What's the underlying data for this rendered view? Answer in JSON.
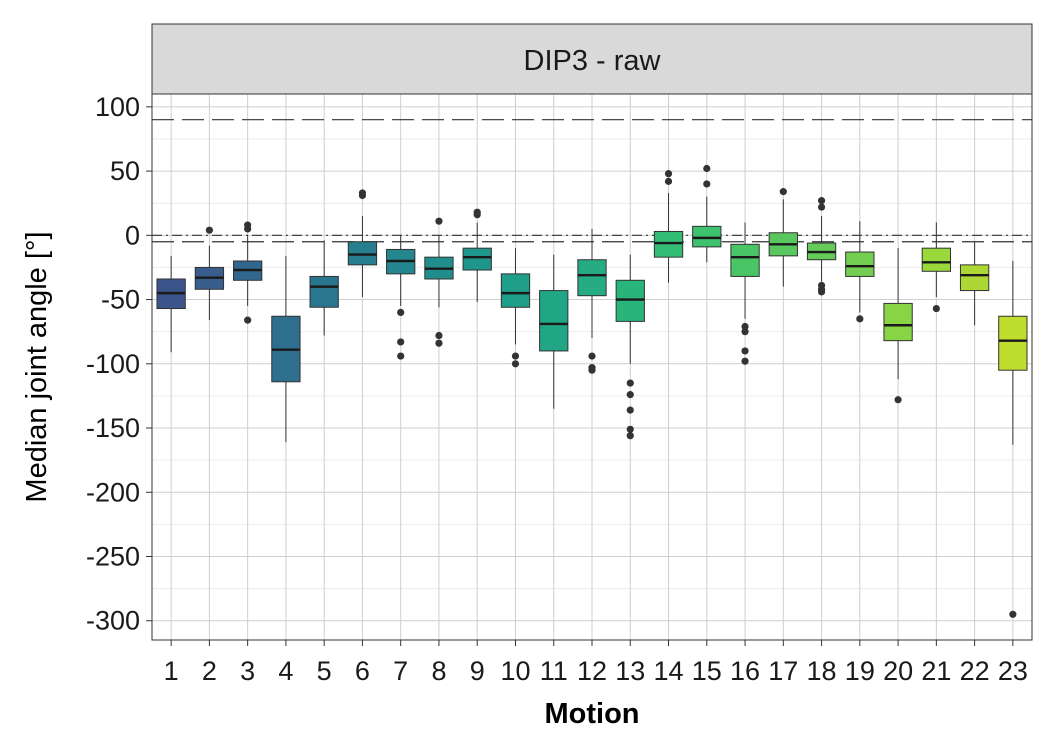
{
  "chart_data": {
    "type": "boxplot",
    "facet_title": "DIP3 - raw",
    "xlabel": "Motion",
    "ylabel": "Median joint angle [°]",
    "ylim": [
      -315,
      110
    ],
    "yticks": [
      100,
      50,
      0,
      -50,
      -100,
      -150,
      -200,
      -250,
      -300
    ],
    "grid": true,
    "reference_lines": [
      {
        "y": 90,
        "style": "longdash"
      },
      {
        "y": 0,
        "style": "dotdash"
      },
      {
        "y": -5,
        "style": "longdash"
      }
    ],
    "categories": [
      "1",
      "2",
      "3",
      "4",
      "5",
      "6",
      "7",
      "8",
      "9",
      "10",
      "11",
      "12",
      "13",
      "14",
      "15",
      "16",
      "17",
      "18",
      "19",
      "20",
      "21",
      "22",
      "23"
    ],
    "boxes": [
      {
        "motion": "1",
        "color": "#3b548a",
        "q1": -57,
        "median": -45,
        "q3": -34,
        "wlow": -91,
        "whigh": -16,
        "outliers": []
      },
      {
        "motion": "2",
        "color": "#395e8d",
        "q1": -42,
        "median": -33,
        "q3": -25,
        "wlow": -66,
        "whigh": -8,
        "outliers": [
          4
        ]
      },
      {
        "motion": "3",
        "color": "#32678d",
        "q1": -35,
        "median": -27,
        "q3": -20,
        "wlow": -55,
        "whigh": 0,
        "outliers": [
          8,
          5,
          -66
        ]
      },
      {
        "motion": "4",
        "color": "#2e6e8e",
        "q1": -114,
        "median": -89,
        "q3": -63,
        "wlow": -161,
        "whigh": -16,
        "outliers": []
      },
      {
        "motion": "5",
        "color": "#2a768e",
        "q1": -56,
        "median": -40,
        "q3": -32,
        "wlow": -78,
        "whigh": -4,
        "outliers": []
      },
      {
        "motion": "6",
        "color": "#277e8e",
        "q1": -23,
        "median": -15,
        "q3": -5,
        "wlow": -48,
        "whigh": 15,
        "outliers": [
          33,
          31
        ]
      },
      {
        "motion": "7",
        "color": "#24868e",
        "q1": -30,
        "median": -20,
        "q3": -11,
        "wlow": -55,
        "whigh": 0,
        "outliers": [
          -60,
          -83,
          -94
        ]
      },
      {
        "motion": "8",
        "color": "#218e8d",
        "q1": -34,
        "median": -26,
        "q3": -17,
        "wlow": -56,
        "whigh": 0,
        "outliers": [
          11,
          -78,
          -84
        ]
      },
      {
        "motion": "9",
        "color": "#1f968b",
        "q1": -27,
        "median": -17,
        "q3": -10,
        "wlow": -52,
        "whigh": 10,
        "outliers": [
          18,
          16
        ]
      },
      {
        "motion": "10",
        "color": "#1f9e89",
        "q1": -56,
        "median": -45,
        "q3": -30,
        "wlow": -85,
        "whigh": -10,
        "outliers": [
          -94,
          -100
        ]
      },
      {
        "motion": "11",
        "color": "#21a685",
        "q1": -90,
        "median": -69,
        "q3": -43,
        "wlow": -135,
        "whigh": -15,
        "outliers": []
      },
      {
        "motion": "12",
        "color": "#25ac82",
        "q1": -47,
        "median": -31,
        "q3": -19,
        "wlow": -80,
        "whigh": 5,
        "outliers": [
          -94,
          -103,
          -105
        ]
      },
      {
        "motion": "13",
        "color": "#29b57a",
        "q1": -67,
        "median": -50,
        "q3": -35,
        "wlow": -100,
        "whigh": -15,
        "outliers": [
          -115,
          -124,
          -136,
          -151,
          -156
        ]
      },
      {
        "motion": "14",
        "color": "#33bc74",
        "q1": -17,
        "median": -6,
        "q3": 3,
        "wlow": -37,
        "whigh": 33,
        "outliers": [
          48,
          42
        ]
      },
      {
        "motion": "15",
        "color": "#3ec26d",
        "q1": -9,
        "median": -2,
        "q3": 7,
        "wlow": -21,
        "whigh": 30,
        "outliers": [
          52,
          40
        ]
      },
      {
        "motion": "16",
        "color": "#49c565",
        "q1": -32,
        "median": -17,
        "q3": -7,
        "wlow": -65,
        "whigh": 10,
        "outliers": [
          -71,
          -75,
          -90,
          -98
        ]
      },
      {
        "motion": "17",
        "color": "#58c75e",
        "q1": -16,
        "median": -7,
        "q3": 2,
        "wlow": -40,
        "whigh": 28,
        "outliers": [
          34
        ]
      },
      {
        "motion": "18",
        "color": "#64cb5a",
        "q1": -19,
        "median": -13,
        "q3": -6,
        "wlow": -36,
        "whigh": 15,
        "outliers": [
          27,
          22,
          -39,
          -42,
          -44
        ]
      },
      {
        "motion": "19",
        "color": "#74ce50",
        "q1": -32,
        "median": -24,
        "q3": -13,
        "wlow": -60,
        "whigh": 11,
        "outliers": [
          -65
        ]
      },
      {
        "motion": "20",
        "color": "#88d445",
        "q1": -82,
        "median": -70,
        "q3": -53,
        "wlow": -112,
        "whigh": -10,
        "outliers": [
          -128
        ]
      },
      {
        "motion": "21",
        "color": "#9ad93c",
        "q1": -28,
        "median": -21,
        "q3": -10,
        "wlow": -48,
        "whigh": 10,
        "outliers": [
          -57
        ]
      },
      {
        "motion": "22",
        "color": "#add734",
        "q1": -43,
        "median": -31,
        "q3": -23,
        "wlow": -70,
        "whigh": -5,
        "outliers": []
      },
      {
        "motion": "23",
        "color": "#bfdd2c",
        "q1": -105,
        "median": -82,
        "q3": -63,
        "wlow": -163,
        "whigh": -20,
        "outliers": [
          -295
        ]
      }
    ]
  }
}
